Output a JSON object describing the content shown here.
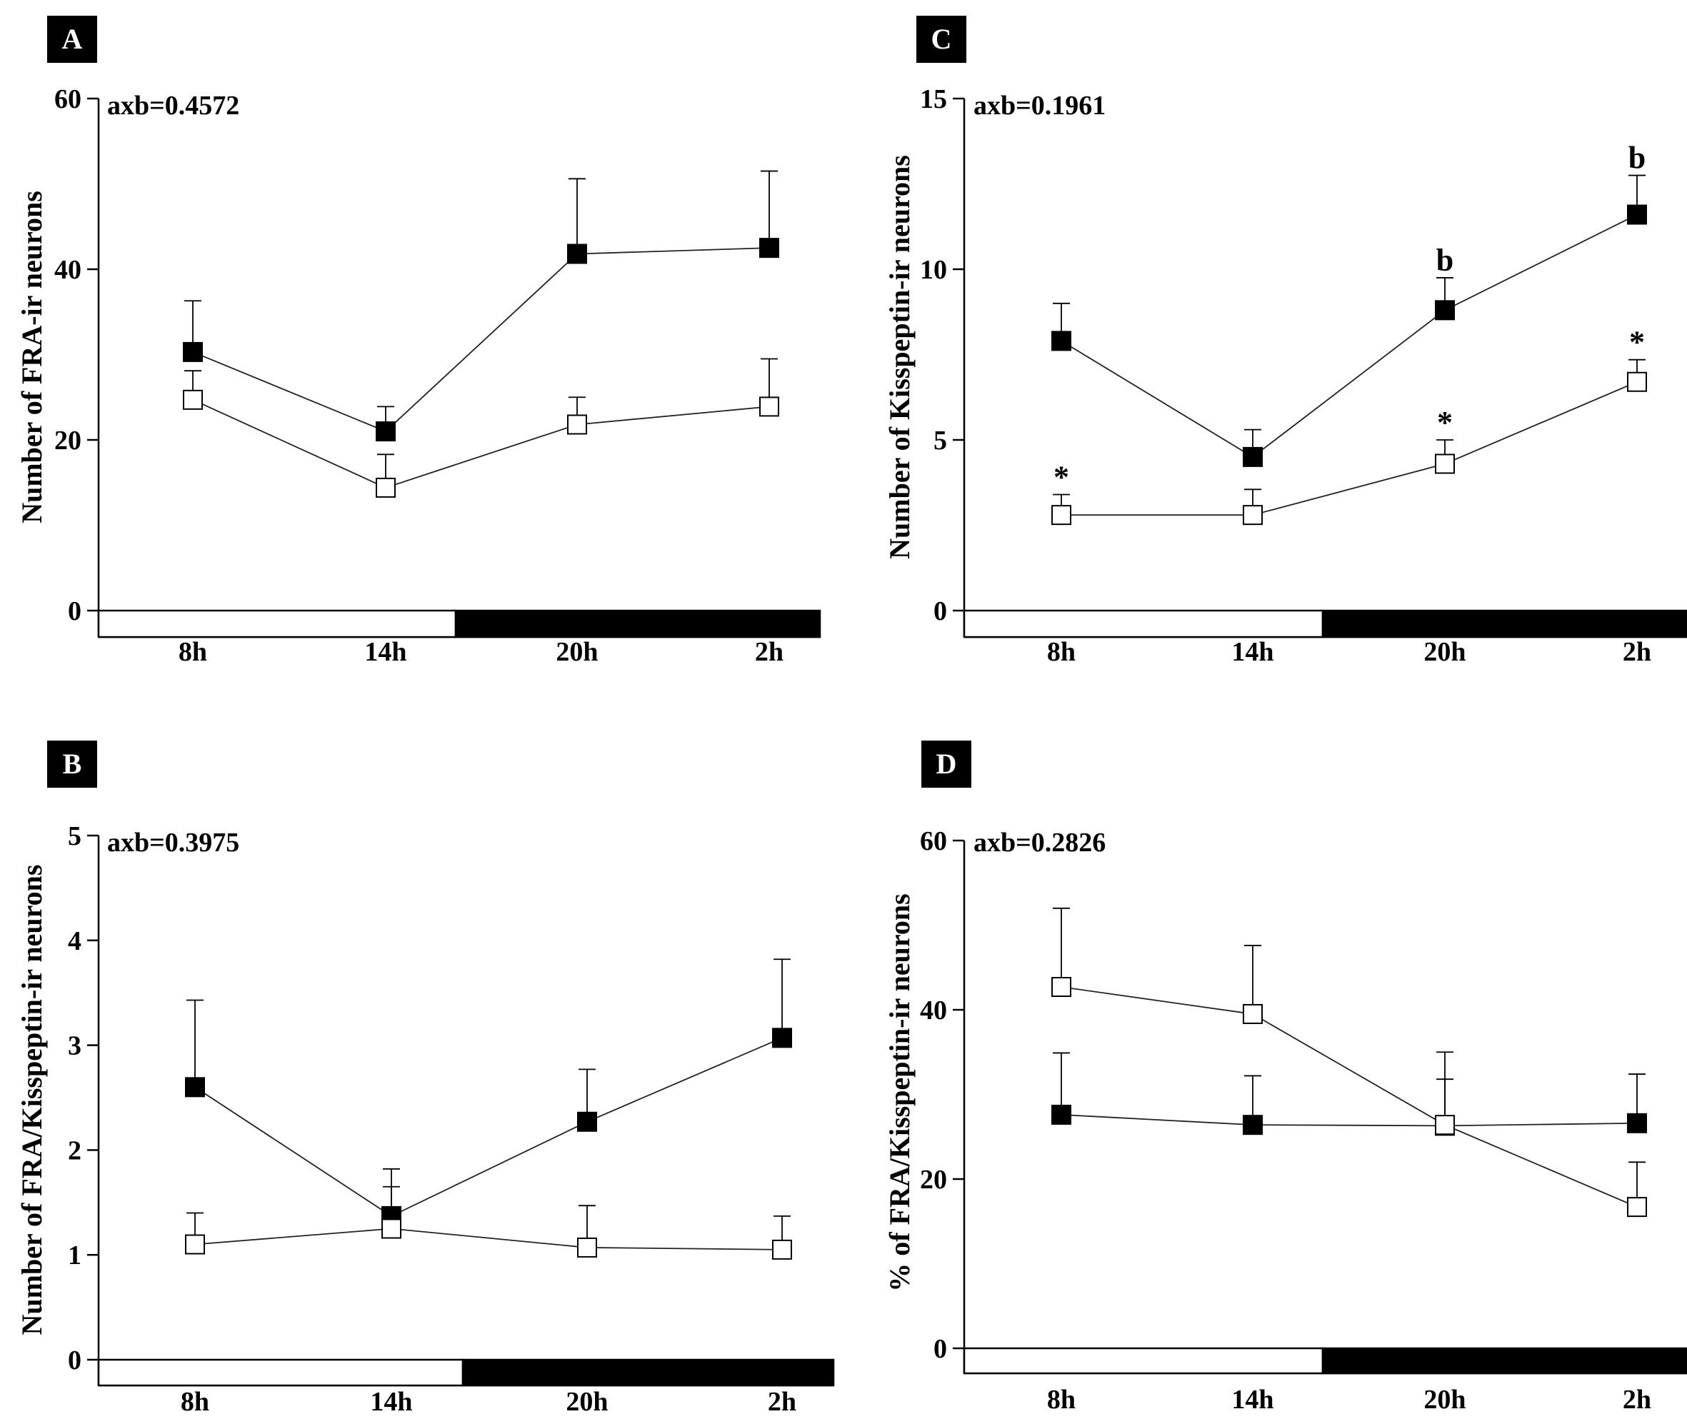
{
  "chart_data": [
    {
      "id": "A",
      "panel_label": "A",
      "type": "line",
      "stat_label": "axb=0.4572",
      "ylabel": "Number of FRA-ir neurons",
      "xlabel": "",
      "ylim": [
        0,
        60
      ],
      "yticks": [
        0,
        20,
        40,
        60
      ],
      "categories": [
        "8h",
        "14h",
        "20h",
        "2h"
      ],
      "light_phase_bar": {
        "light": "8h-14h",
        "dark": "20h-2h"
      },
      "series": [
        {
          "name": "filled",
          "marker": "filled-square",
          "values": [
            30.3,
            21.0,
            41.8,
            42.5
          ],
          "errors": [
            6.0,
            2.9,
            8.8,
            9.0
          ],
          "annotations": [
            "",
            "",
            "",
            ""
          ]
        },
        {
          "name": "open",
          "marker": "open-square",
          "values": [
            24.7,
            14.4,
            21.8,
            23.9
          ],
          "errors": [
            3.4,
            3.9,
            3.2,
            5.6
          ],
          "annotations": [
            "",
            "",
            "",
            ""
          ]
        }
      ]
    },
    {
      "id": "B",
      "panel_label": "B",
      "type": "line",
      "stat_label": "axb=0.3975",
      "ylabel": "Number of FRA/Kisspeptin-ir neurons",
      "xlabel": "",
      "ylim": [
        0,
        5
      ],
      "yticks": [
        0,
        1,
        2,
        3,
        4,
        5
      ],
      "categories": [
        "8h",
        "14h",
        "20h",
        "2h"
      ],
      "light_phase_bar": {
        "light": "8h-14h",
        "dark": "20h-2h"
      },
      "series": [
        {
          "name": "filled",
          "marker": "filled-square",
          "values": [
            2.6,
            1.37,
            2.27,
            3.07
          ],
          "errors": [
            0.83,
            0.45,
            0.5,
            0.75
          ],
          "annotations": [
            "",
            "",
            "",
            ""
          ]
        },
        {
          "name": "open",
          "marker": "open-square",
          "values": [
            1.1,
            1.25,
            1.07,
            1.05
          ],
          "errors": [
            0.3,
            0.4,
            0.4,
            0.32
          ],
          "annotations": [
            "",
            "",
            "",
            ""
          ]
        }
      ]
    },
    {
      "id": "C",
      "panel_label": "C",
      "type": "line",
      "stat_label": "axb=0.1961",
      "ylabel": "Number of Kisspeptin-ir neurons",
      "xlabel": "",
      "ylim": [
        0,
        15
      ],
      "yticks": [
        0,
        5,
        10,
        15
      ],
      "categories": [
        "8h",
        "14h",
        "20h",
        "2h"
      ],
      "light_phase_bar": {
        "light": "8h-14h",
        "dark": "20h-2h"
      },
      "series": [
        {
          "name": "filled",
          "marker": "filled-square",
          "values": [
            7.9,
            4.5,
            8.8,
            11.6
          ],
          "errors": [
            1.1,
            0.8,
            0.95,
            1.15
          ],
          "annotations": [
            "",
            "",
            "b",
            "b"
          ]
        },
        {
          "name": "open",
          "marker": "open-square",
          "values": [
            2.8,
            2.8,
            4.3,
            6.7
          ],
          "errors": [
            0.6,
            0.75,
            0.7,
            0.65
          ],
          "annotations": [
            "*",
            "",
            "*",
            "*"
          ]
        }
      ]
    },
    {
      "id": "D",
      "panel_label": "D",
      "type": "line",
      "stat_label": "axb=0.2826",
      "ylabel": "% of FRA/Kisspeptin-ir neurons",
      "xlabel": "",
      "ylim": [
        0,
        60
      ],
      "yticks": [
        0,
        20,
        40,
        60
      ],
      "categories": [
        "8h",
        "14h",
        "20h",
        "2h"
      ],
      "light_phase_bar": {
        "light": "8h-14h",
        "dark": "20h-2h"
      },
      "series": [
        {
          "name": "filled",
          "marker": "filled-square",
          "values": [
            27.6,
            26.4,
            26.3,
            26.6
          ],
          "errors": [
            7.3,
            5.8,
            8.7,
            5.8
          ],
          "annotations": [
            "",
            "",
            "",
            ""
          ]
        },
        {
          "name": "open",
          "marker": "open-square",
          "values": [
            42.7,
            39.5,
            26.4,
            16.7
          ],
          "errors": [
            9.3,
            8.1,
            5.4,
            5.3
          ],
          "annotations": [
            "",
            "",
            "",
            ""
          ]
        }
      ]
    }
  ]
}
